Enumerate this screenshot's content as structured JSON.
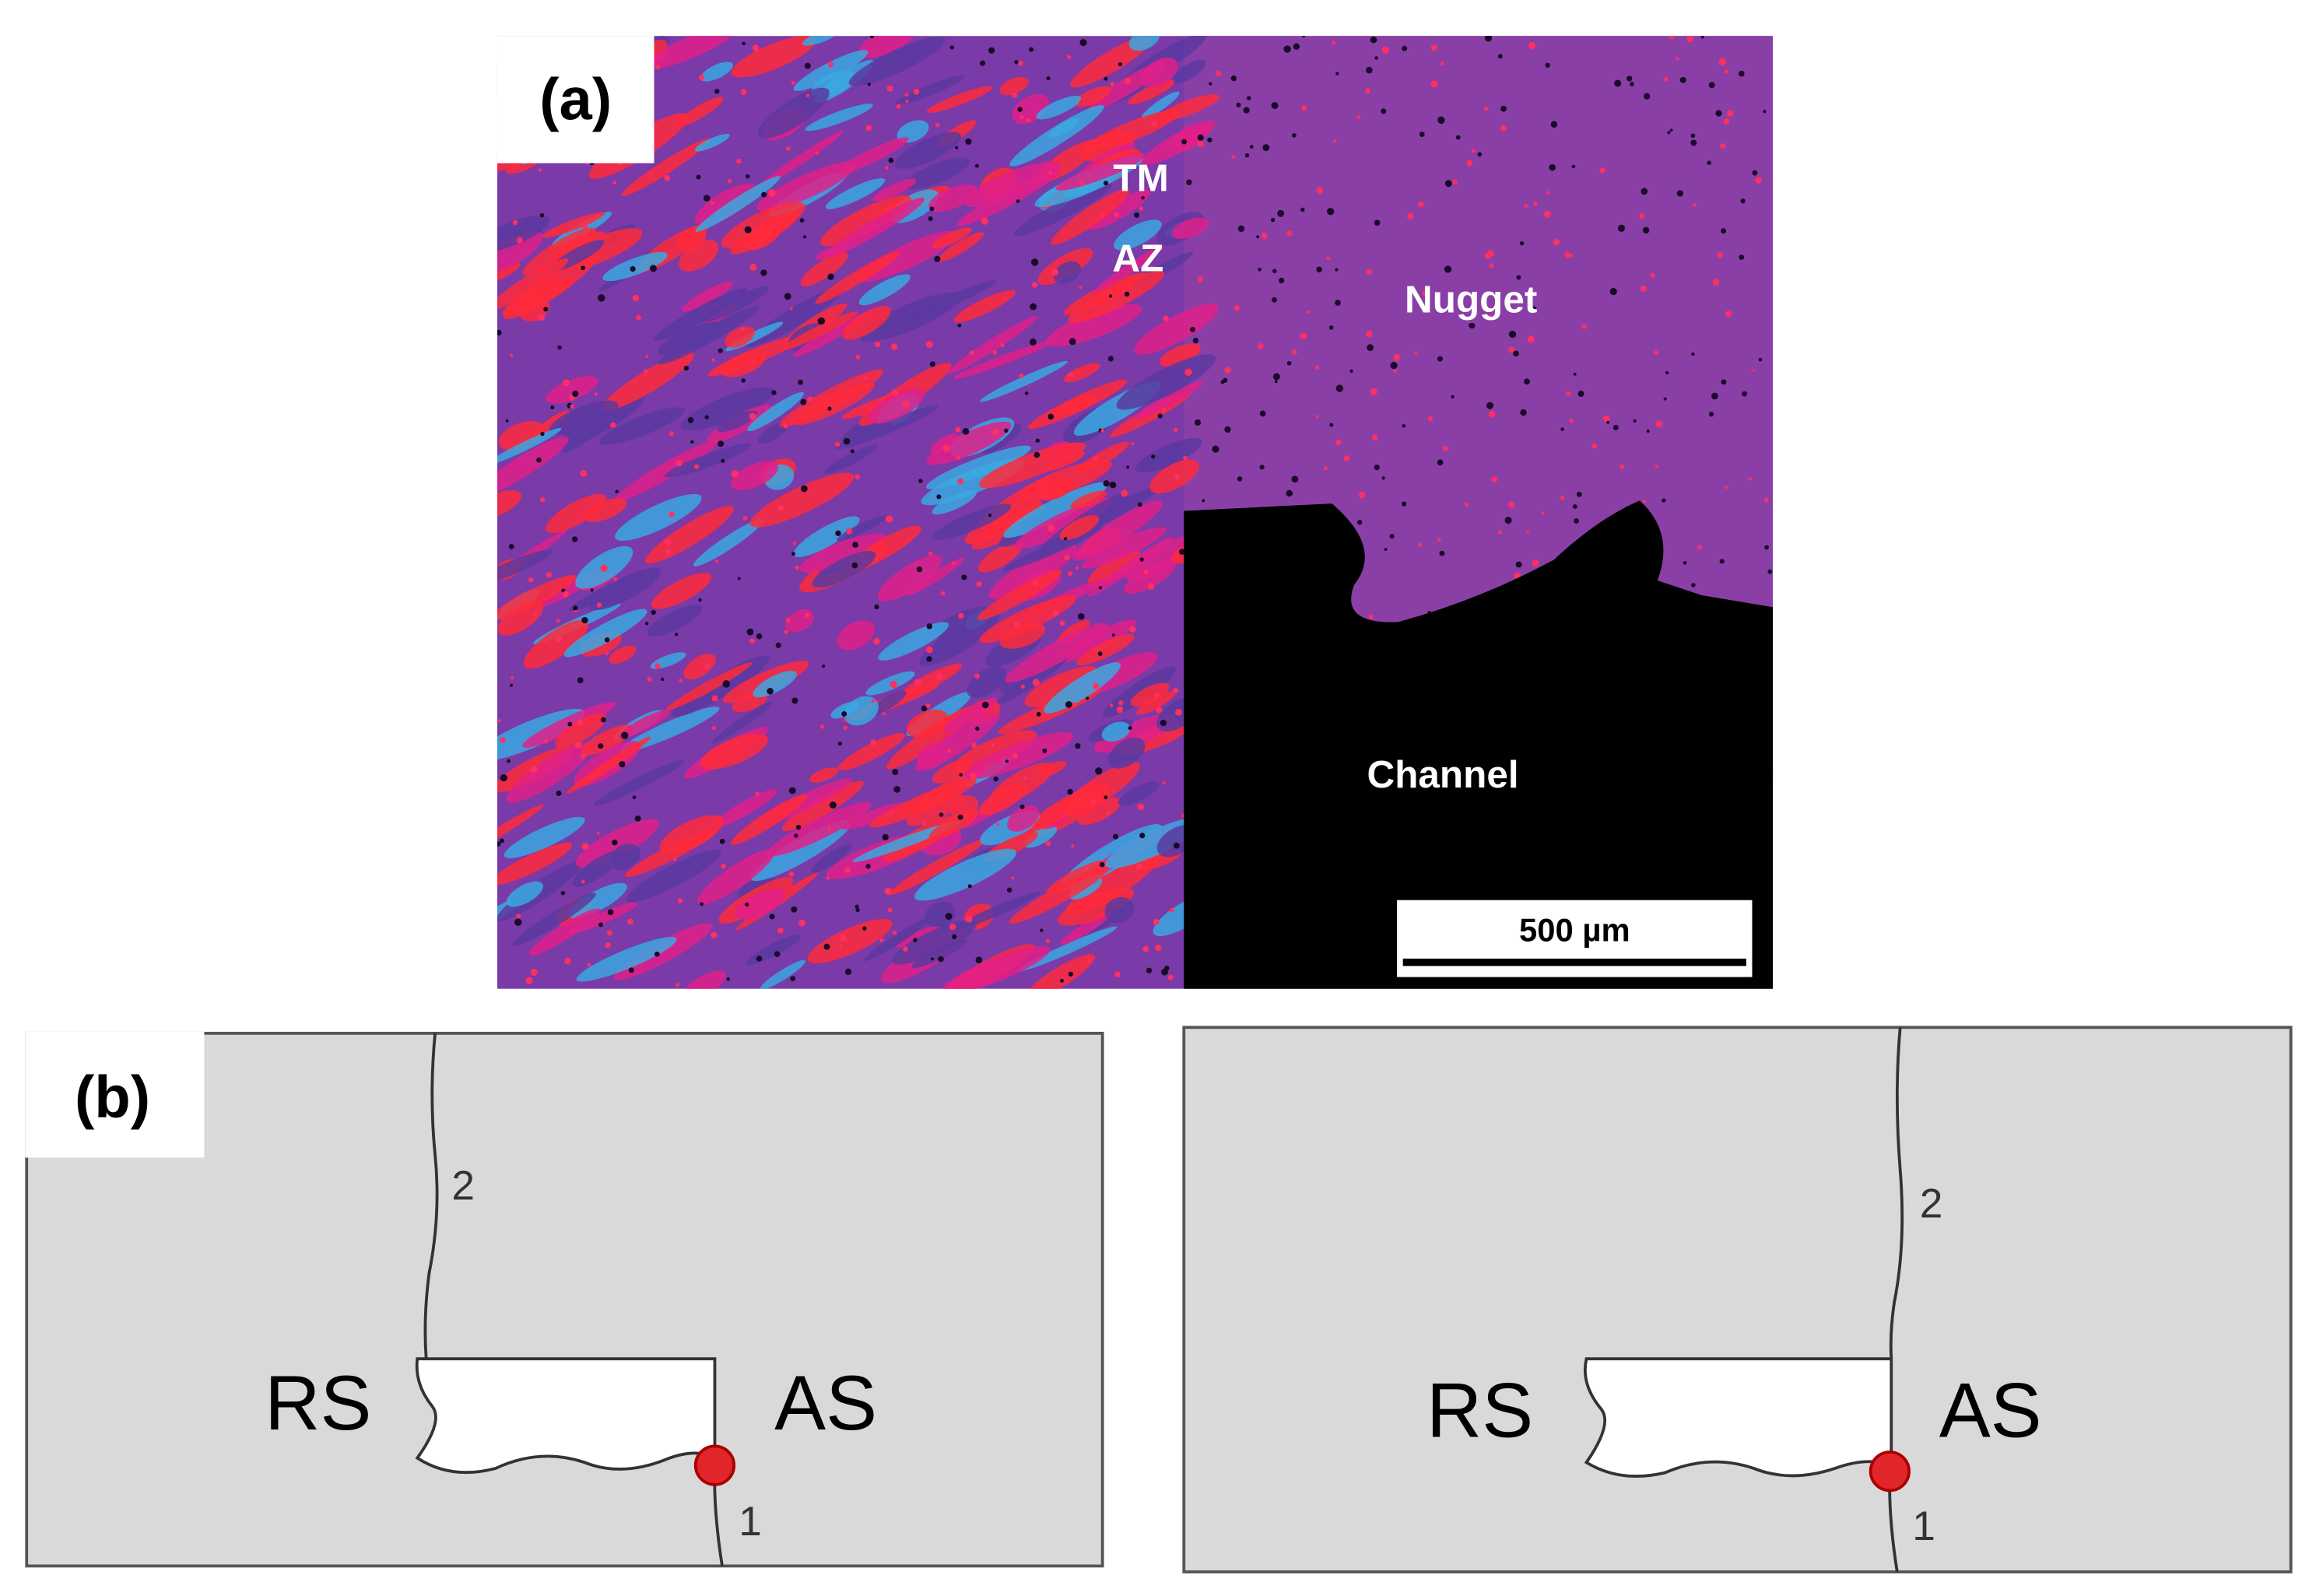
{
  "panel_a": {
    "label": "(a)",
    "regions": [
      "TM",
      "AZ",
      "Nugget",
      "Channel"
    ],
    "scale_bar": "500 µm"
  },
  "panel_b": {
    "label": "(b)",
    "diagrams": [
      {
        "upper_path": "2",
        "retreating_side": "RS",
        "advancing_side": "AS",
        "lower_path": "1"
      },
      {
        "upper_path": "2",
        "retreating_side": "RS",
        "advancing_side": "AS",
        "lower_path": "1"
      }
    ]
  }
}
